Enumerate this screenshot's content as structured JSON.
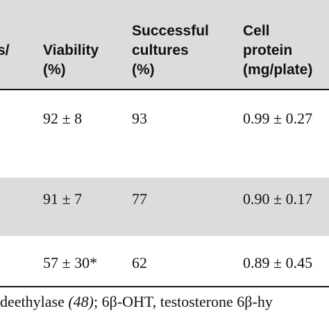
{
  "table": {
    "headers": {
      "col0": [
        "s/"
      ],
      "viability": [
        "Viability",
        "(%)"
      ],
      "successful": [
        "Successful",
        "cultures",
        "(%)"
      ],
      "protein": [
        "Cell",
        "protein",
        "(mg/plate)"
      ]
    },
    "rows": [
      {
        "viability": "92 ± 8",
        "successful": "93",
        "protein": "0.99 ± 0.27"
      },
      {
        "viability": "91 ± 7",
        "successful": "77",
        "protein": "0.90 ± 0.17"
      },
      {
        "viability": "57 ± 30*",
        "successful": "62",
        "protein": "0.89 ± 0.45"
      }
    ]
  },
  "footnote": {
    "pre": "deethylase ",
    "ref": "(48)",
    "post": "; 6β-OHT, testosterone 6β-hy"
  },
  "colors": {
    "header_background": "#dcdcdc",
    "shaded_row_background": "#dcdcdc",
    "text": "#111111"
  }
}
